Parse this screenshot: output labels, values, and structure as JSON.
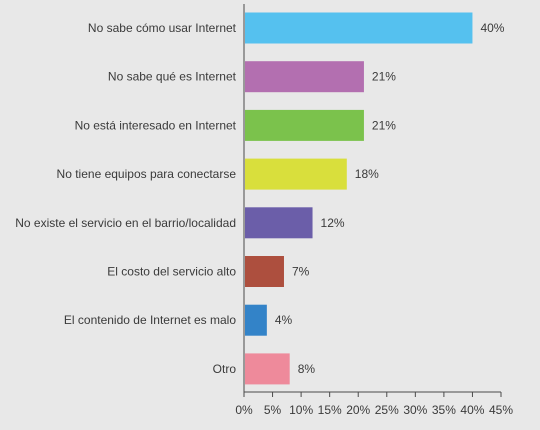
{
  "chart_data": {
    "type": "bar",
    "orientation": "horizontal",
    "categories": [
      "No sabe cómo usar Internet",
      "No sabe qué es Internet",
      "No está interesado en Internet",
      "No tiene equipos para conectarse",
      "No existe el servicio en el barrio/localidad",
      "El costo del servicio alto",
      "El contenido de Internet es malo",
      "Otro"
    ],
    "values": [
      40,
      21,
      21,
      18,
      12,
      7,
      4,
      8
    ],
    "value_labels": [
      "40%",
      "21%",
      "21%",
      "18%",
      "12%",
      "7%",
      "4%",
      "8%"
    ],
    "colors": [
      "#55c1ef",
      "#b36fb0",
      "#7bc24c",
      "#d9df3c",
      "#6b5ea9",
      "#ad4f3e",
      "#3383c8",
      "#ee8a9b"
    ],
    "xticks": [
      0,
      5,
      10,
      15,
      20,
      25,
      30,
      35,
      40,
      45
    ],
    "xtick_labels": [
      "0%",
      "5%",
      "10%",
      "15%",
      "20%",
      "25%",
      "30%",
      "35%",
      "40%",
      "45%"
    ],
    "xlim": [
      0,
      45
    ],
    "grid": false,
    "legend": false,
    "title": "",
    "xlabel": "",
    "ylabel": ""
  }
}
